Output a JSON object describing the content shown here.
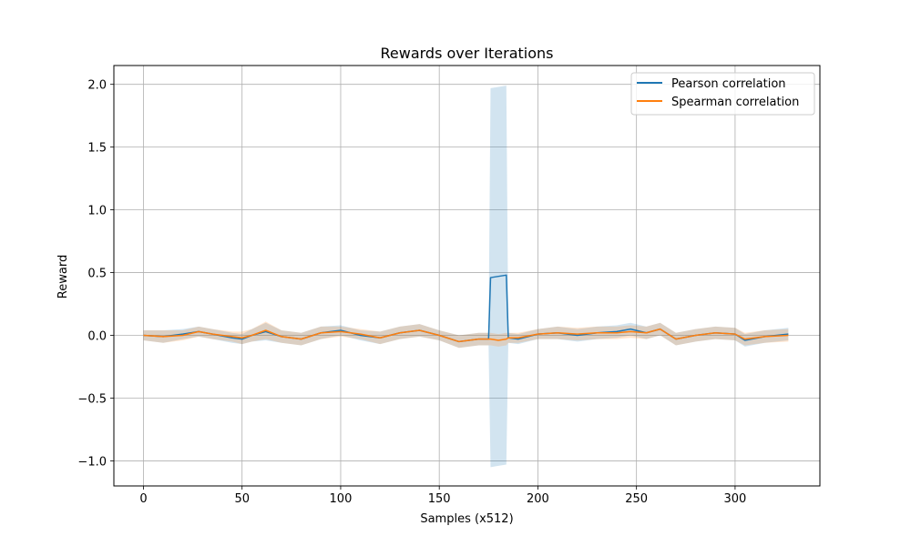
{
  "chart_data": {
    "type": "line",
    "title": "Rewards over Iterations",
    "xlabel": "Samples (x512)",
    "ylabel": "Reward",
    "xlim": [
      -15,
      343
    ],
    "ylim": [
      -1.2,
      2.15
    ],
    "xticks": [
      0,
      50,
      100,
      150,
      200,
      250,
      300
    ],
    "xtick_labels": [
      "0",
      "50",
      "100",
      "150",
      "200",
      "250",
      "300"
    ],
    "yticks": [
      -1.0,
      -0.5,
      0.0,
      0.5,
      1.0,
      1.5,
      2.0
    ],
    "ytick_labels": [
      "−1.0",
      "−0.5",
      "0.0",
      "0.5",
      "1.0",
      "1.5",
      "2.0"
    ],
    "grid": true,
    "legend_position": "upper right",
    "x": [
      0,
      10,
      20,
      28,
      35,
      45,
      50,
      55,
      62,
      70,
      75,
      80,
      90,
      100,
      110,
      120,
      130,
      140,
      150,
      160,
      165,
      170,
      175,
      176,
      180,
      184,
      185,
      190,
      200,
      210,
      220,
      230,
      240,
      247,
      255,
      262,
      270,
      280,
      290,
      300,
      305,
      315,
      327
    ],
    "series": [
      {
        "name": "Pearson correlation",
        "color": "#1f77b4",
        "values": [
          0.0,
          -0.01,
          0.01,
          0.03,
          0.01,
          -0.02,
          -0.03,
          0.0,
          0.03,
          -0.01,
          -0.02,
          -0.03,
          0.02,
          0.04,
          0.0,
          -0.02,
          0.02,
          0.04,
          0.0,
          -0.05,
          -0.04,
          -0.03,
          -0.03,
          0.46,
          0.47,
          0.48,
          -0.02,
          -0.03,
          0.01,
          0.02,
          0.0,
          0.02,
          0.03,
          0.05,
          0.02,
          0.05,
          -0.03,
          0.0,
          0.02,
          0.01,
          -0.04,
          -0.01,
          0.01
        ],
        "band": [
          0.04,
          0.05,
          0.04,
          0.04,
          0.04,
          0.04,
          0.04,
          0.05,
          0.07,
          0.05,
          0.05,
          0.05,
          0.05,
          0.04,
          0.04,
          0.05,
          0.05,
          0.05,
          0.04,
          0.05,
          0.05,
          0.05,
          0.05,
          1.51,
          1.51,
          1.51,
          0.04,
          0.04,
          0.04,
          0.05,
          0.05,
          0.05,
          0.05,
          0.05,
          0.05,
          0.05,
          0.05,
          0.05,
          0.05,
          0.05,
          0.05,
          0.05,
          0.05
        ]
      },
      {
        "name": "Spearman correlation",
        "color": "#ff7f0e",
        "values": [
          0.0,
          -0.01,
          0.0,
          0.03,
          0.01,
          -0.01,
          -0.02,
          0.0,
          0.04,
          -0.01,
          -0.02,
          -0.03,
          0.02,
          0.03,
          0.01,
          -0.02,
          0.02,
          0.04,
          0.0,
          -0.05,
          -0.04,
          -0.03,
          -0.03,
          -0.03,
          -0.04,
          -0.03,
          -0.02,
          -0.02,
          0.01,
          0.02,
          0.01,
          0.02,
          0.02,
          0.03,
          0.02,
          0.05,
          -0.03,
          0.0,
          0.02,
          0.01,
          -0.03,
          -0.01,
          0.0
        ],
        "band": [
          0.04,
          0.05,
          0.04,
          0.04,
          0.04,
          0.04,
          0.05,
          0.05,
          0.07,
          0.05,
          0.05,
          0.05,
          0.05,
          0.04,
          0.04,
          0.05,
          0.05,
          0.05,
          0.04,
          0.05,
          0.05,
          0.05,
          0.05,
          0.05,
          0.05,
          0.05,
          0.04,
          0.04,
          0.04,
          0.05,
          0.05,
          0.05,
          0.05,
          0.05,
          0.05,
          0.05,
          0.05,
          0.05,
          0.05,
          0.05,
          0.05,
          0.05,
          0.05
        ]
      }
    ]
  }
}
